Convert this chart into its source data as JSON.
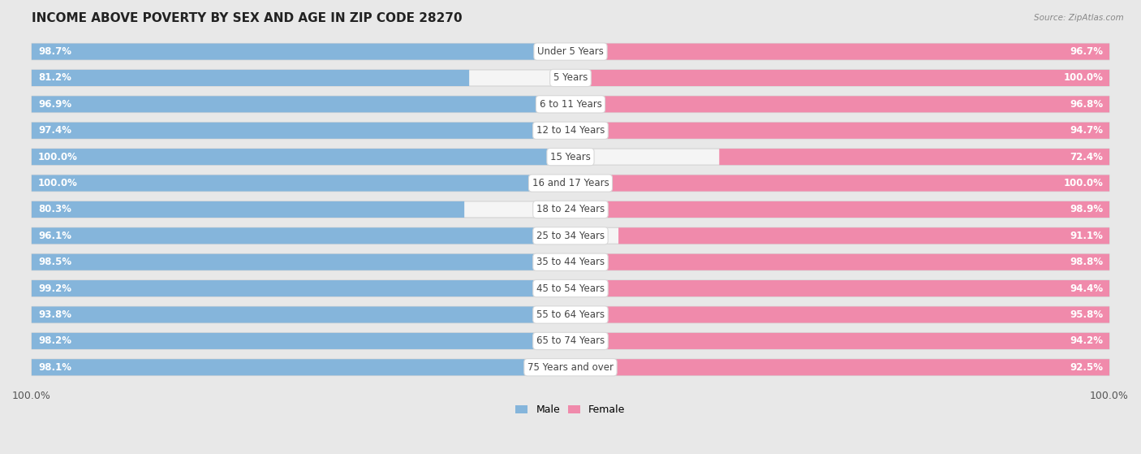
{
  "title": "INCOME ABOVE POVERTY BY SEX AND AGE IN ZIP CODE 28270",
  "source": "Source: ZipAtlas.com",
  "categories": [
    "Under 5 Years",
    "5 Years",
    "6 to 11 Years",
    "12 to 14 Years",
    "15 Years",
    "16 and 17 Years",
    "18 to 24 Years",
    "25 to 34 Years",
    "35 to 44 Years",
    "45 to 54 Years",
    "55 to 64 Years",
    "65 to 74 Years",
    "75 Years and over"
  ],
  "male_values": [
    98.7,
    81.2,
    96.9,
    97.4,
    100.0,
    100.0,
    80.3,
    96.1,
    98.5,
    99.2,
    93.8,
    98.2,
    98.1
  ],
  "female_values": [
    96.7,
    100.0,
    96.8,
    94.7,
    72.4,
    100.0,
    98.9,
    91.1,
    98.8,
    94.4,
    95.8,
    94.2,
    92.5
  ],
  "male_color": "#85b5db",
  "female_color": "#f08aab",
  "male_color_light": "#b8d4ea",
  "female_color_light": "#f5b8cd",
  "male_label": "Male",
  "female_label": "Female",
  "background_color": "#e8e8e8",
  "row_bg_color": "#f5f5f5",
  "row_border_color": "#d8d8d8",
  "title_fontsize": 11,
  "label_fontsize": 8.5,
  "value_fontsize": 8.5,
  "xlim": 100.0,
  "x_axis_label_left": "100.0%",
  "x_axis_label_right": "100.0%"
}
